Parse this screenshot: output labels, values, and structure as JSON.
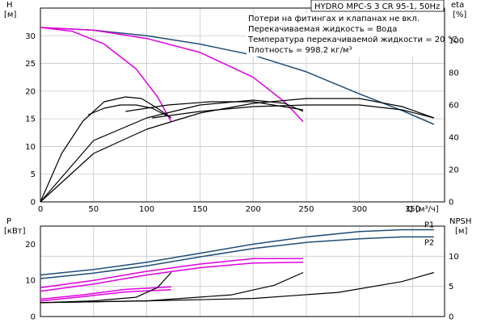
{
  "chart_data": [
    {
      "type": "line",
      "panel": "top",
      "title": "HYDRO MPC-S 3 CR 95-1, 50Hz",
      "notes": [
        "Потери на фитингах и клапанах не вкл.",
        "Перекачиваемая жидкость = Вода",
        "Температура перекачиваемой жидкости = 20 °C",
        "Плотность = 998.2 кг/м³"
      ],
      "xlabel": "Q [м³/ч]",
      "ylabel_left": [
        "H",
        "[м]"
      ],
      "ylabel_right": [
        "eta",
        "[%]"
      ],
      "xlim": [
        0,
        380
      ],
      "ylim": [
        0,
        35
      ],
      "ylim_right": [
        0,
        120
      ],
      "xticks": [
        0,
        50,
        100,
        150,
        200,
        250,
        300,
        350
      ],
      "yticks": [
        0,
        5,
        10,
        15,
        20,
        25,
        30
      ],
      "yticks_right": [
        0,
        20,
        40,
        60,
        80,
        100
      ],
      "grid": true,
      "series": [
        {
          "axis": "left",
          "color": "#1f4e79",
          "x": [
            0,
            50,
            100,
            150,
            200,
            250,
            300,
            340,
            370
          ],
          "y": [
            31.5,
            31,
            30,
            28.5,
            26.5,
            23.5,
            19.5,
            16.5,
            14
          ]
        },
        {
          "axis": "left",
          "color": "#e000e0",
          "x": [
            0,
            30,
            60,
            90,
            110,
            123
          ],
          "y": [
            31.5,
            30.8,
            28.5,
            24,
            19,
            14.5
          ]
        },
        {
          "axis": "left",
          "color": "#e000e0",
          "x": [
            0,
            50,
            100,
            150,
            200,
            230,
            247
          ],
          "y": [
            31.5,
            31,
            29.5,
            27,
            22.5,
            18,
            14.5
          ]
        },
        {
          "axis": "right",
          "color": "#000000",
          "x": [
            0,
            20,
            40,
            60,
            80,
            95,
            110,
            123
          ],
          "y": [
            0,
            30,
            50,
            62,
            65,
            64,
            58,
            52
          ]
        },
        {
          "axis": "right",
          "color": "#000000",
          "x": [
            0,
            50,
            100,
            150,
            200,
            230,
            247
          ],
          "y": [
            0,
            38,
            52,
            60,
            63,
            61,
            56
          ]
        },
        {
          "axis": "right",
          "color": "#000000",
          "x": [
            0,
            50,
            100,
            150,
            200,
            250,
            300,
            340,
            370
          ],
          "y": [
            0,
            30,
            45,
            55,
            61,
            64,
            64,
            59,
            52
          ]
        },
        {
          "axis": "right",
          "color": "#000000",
          "x": [
            45,
            60,
            75,
            90,
            105,
            120
          ],
          "y": [
            54,
            58,
            60,
            60,
            58,
            53
          ]
        },
        {
          "axis": "right",
          "color": "#000000",
          "x": [
            80,
            120,
            160,
            200,
            247
          ],
          "y": [
            56,
            60,
            62,
            62,
            57
          ]
        },
        {
          "axis": "right",
          "color": "#000000",
          "x": [
            105,
            150,
            200,
            250,
            300,
            340,
            370
          ],
          "y": [
            52,
            56,
            59,
            60,
            60,
            57,
            52
          ]
        }
      ]
    },
    {
      "type": "line",
      "panel": "bottom",
      "xlabel": "",
      "ylabel_left": [
        "P",
        "[кВт]"
      ],
      "ylabel_right": [
        "NPSH",
        "[м]"
      ],
      "xlim": [
        0,
        380
      ],
      "ylim": [
        0,
        25
      ],
      "ylim_right": [
        0,
        15
      ],
      "yticks": [
        0,
        10,
        20
      ],
      "yticks_right": [
        0,
        5,
        10
      ],
      "grid": true,
      "series": [
        {
          "name": "P1",
          "axis": "left",
          "color": "#1f4e79",
          "x": [
            0,
            50,
            100,
            150,
            200,
            250,
            300,
            340,
            370
          ],
          "y": [
            11.5,
            13,
            15,
            17.5,
            20,
            22,
            23.5,
            24,
            24
          ]
        },
        {
          "name": "P2",
          "axis": "left",
          "color": "#1f4e79",
          "x": [
            0,
            50,
            100,
            150,
            200,
            250,
            300,
            340,
            370
          ],
          "y": [
            10.5,
            12,
            14,
            16.5,
            18.8,
            20.5,
            21.5,
            22,
            22
          ]
        },
        {
          "axis": "left",
          "color": "#e000e0",
          "x": [
            0,
            50,
            100,
            150,
            200,
            247
          ],
          "y": [
            8,
            10,
            12.5,
            14.5,
            16,
            16
          ]
        },
        {
          "axis": "left",
          "color": "#e000e0",
          "x": [
            0,
            50,
            100,
            150,
            200,
            247
          ],
          "y": [
            7,
            9,
            11.5,
            13.5,
            14.8,
            15
          ]
        },
        {
          "axis": "left",
          "color": "#e000e0",
          "x": [
            0,
            40,
            80,
            123
          ],
          "y": [
            4.8,
            6,
            7.5,
            8.2
          ]
        },
        {
          "axis": "left",
          "color": "#e000e0",
          "x": [
            0,
            40,
            80,
            123
          ],
          "y": [
            4.3,
            5.5,
            6.8,
            7.4
          ]
        },
        {
          "axis": "right",
          "color": "#000000",
          "x": [
            0,
            50,
            90,
            110,
            123
          ],
          "y": [
            2.3,
            2.6,
            3.2,
            4.8,
            7.3
          ]
        },
        {
          "axis": "right",
          "color": "#000000",
          "x": [
            0,
            100,
            180,
            220,
            247
          ],
          "y": [
            2.3,
            2.6,
            3.6,
            5.2,
            7.3
          ]
        },
        {
          "axis": "right",
          "color": "#000000",
          "x": [
            0,
            100,
            200,
            280,
            340,
            370
          ],
          "y": [
            2.3,
            2.6,
            3,
            4,
            5.8,
            7.3
          ]
        }
      ]
    }
  ]
}
